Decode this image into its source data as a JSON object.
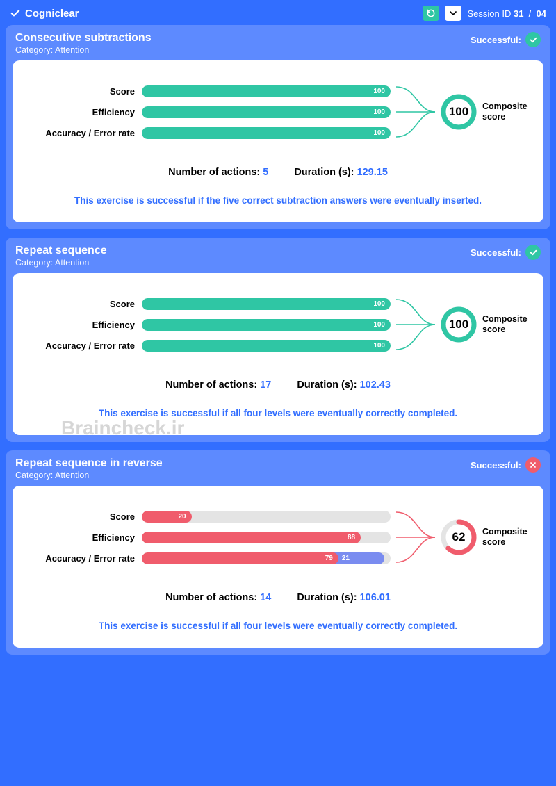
{
  "colors": {
    "page_bg": "#326eff",
    "card_bg": "#5d8aff",
    "body_bg": "#ffffff",
    "accent_blue": "#326eff",
    "success": "#2fc6a4",
    "fail": "#f05c6c",
    "secondary_fill": "#7a8cf0",
    "track": "#e4e4e4",
    "text_white": "#ffffff",
    "text_black": "#000000",
    "watermark": "#d6d6d6"
  },
  "header": {
    "brand": "Cogniclear",
    "session_label": "Session ID",
    "session_a": "31",
    "session_sep": "/",
    "session_b": "04"
  },
  "labels": {
    "category_prefix": "Category:",
    "successful": "Successful:",
    "composite": "Composite score",
    "actions": "Number of actions:",
    "duration": "Duration (s):",
    "score": "Score",
    "efficiency": "Efficiency",
    "accuracy": "Accuracy / Error rate"
  },
  "watermark": "Braincheck.ir",
  "cards": [
    {
      "title": "Consecutive subtractions",
      "category": "Attention",
      "successful": true,
      "composite": 100,
      "bars": [
        {
          "label_key": "score",
          "segments": [
            {
              "value": 100,
              "color": "#2fc6a4"
            }
          ]
        },
        {
          "label_key": "efficiency",
          "segments": [
            {
              "value": 100,
              "color": "#2fc6a4"
            }
          ]
        },
        {
          "label_key": "accuracy",
          "segments": [
            {
              "value": 100,
              "color": "#2fc6a4"
            }
          ]
        }
      ],
      "actions": 5,
      "duration": "129.15",
      "note": "This exercise is successful if the five correct subtraction answers were eventually inserted."
    },
    {
      "title": "Repeat sequence",
      "category": "Attention",
      "successful": true,
      "composite": 100,
      "bars": [
        {
          "label_key": "score",
          "segments": [
            {
              "value": 100,
              "color": "#2fc6a4"
            }
          ]
        },
        {
          "label_key": "efficiency",
          "segments": [
            {
              "value": 100,
              "color": "#2fc6a4"
            }
          ]
        },
        {
          "label_key": "accuracy",
          "segments": [
            {
              "value": 100,
              "color": "#2fc6a4"
            }
          ]
        }
      ],
      "actions": 17,
      "duration": "102.43",
      "note": "This exercise is successful if all four levels were eventually correctly completed."
    },
    {
      "title": "Repeat sequence in reverse",
      "category": "Attention",
      "successful": false,
      "composite": 62,
      "bars": [
        {
          "label_key": "score",
          "segments": [
            {
              "value": 20,
              "color": "#f05c6c"
            }
          ]
        },
        {
          "label_key": "efficiency",
          "segments": [
            {
              "value": 88,
              "color": "#f05c6c"
            }
          ]
        },
        {
          "label_key": "accuracy",
          "segments": [
            {
              "value": 79,
              "color": "#f05c6c"
            },
            {
              "value": 21,
              "color": "#7a8cf0"
            }
          ]
        }
      ],
      "actions": 14,
      "duration": "106.01",
      "note": "This exercise is successful if all four levels were eventually correctly completed."
    }
  ]
}
